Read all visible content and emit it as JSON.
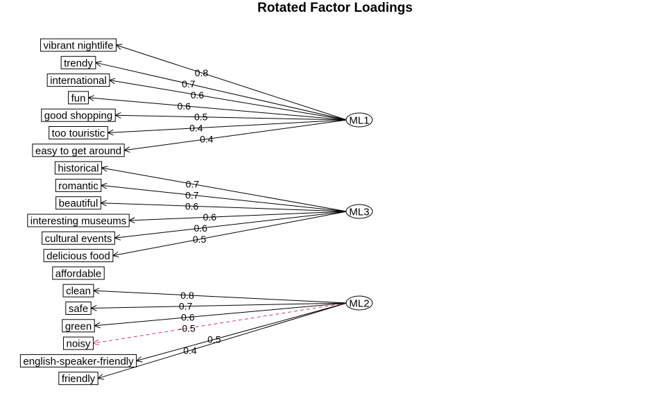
{
  "title": "Rotated Factor Loadings",
  "colors": {
    "positive_edge": "#000000",
    "negative_edge": "#d6336c",
    "node_fill": "#ffffff",
    "node_stroke": "#000000"
  },
  "factors": [
    {
      "id": "ML1",
      "label": "ML1"
    },
    {
      "id": "ML3",
      "label": "ML3"
    },
    {
      "id": "ML2",
      "label": "ML2"
    }
  ],
  "variables": [
    {
      "id": "vibrant-nightlife",
      "label": "vibrant nightlife"
    },
    {
      "id": "trendy",
      "label": "trendy"
    },
    {
      "id": "international",
      "label": "international"
    },
    {
      "id": "fun",
      "label": "fun"
    },
    {
      "id": "good-shopping",
      "label": "good shopping"
    },
    {
      "id": "too-touristic",
      "label": "too touristic"
    },
    {
      "id": "easy-to-get-around",
      "label": "easy to get around"
    },
    {
      "id": "historical",
      "label": "historical"
    },
    {
      "id": "romantic",
      "label": "romantic"
    },
    {
      "id": "beautiful",
      "label": "beautiful"
    },
    {
      "id": "interesting-museums",
      "label": "interesting museums"
    },
    {
      "id": "cultural-events",
      "label": "cultural events"
    },
    {
      "id": "delicious-food",
      "label": "delicious food"
    },
    {
      "id": "affordable",
      "label": "affordable"
    },
    {
      "id": "clean",
      "label": "clean"
    },
    {
      "id": "safe",
      "label": "safe"
    },
    {
      "id": "green",
      "label": "green"
    },
    {
      "id": "noisy",
      "label": "noisy"
    },
    {
      "id": "english-speaker-friendly",
      "label": "english-speaker-friendly"
    },
    {
      "id": "friendly",
      "label": "friendly"
    }
  ],
  "loadings": [
    {
      "factor": "ML1",
      "variable": "vibrant-nightlife",
      "value": 0.8,
      "label": "0.8"
    },
    {
      "factor": "ML1",
      "variable": "trendy",
      "value": 0.7,
      "label": "0.7"
    },
    {
      "factor": "ML1",
      "variable": "international",
      "value": 0.6,
      "label": "0.6"
    },
    {
      "factor": "ML1",
      "variable": "fun",
      "value": 0.6,
      "label": "0.6"
    },
    {
      "factor": "ML1",
      "variable": "good-shopping",
      "value": 0.5,
      "label": "0.5"
    },
    {
      "factor": "ML1",
      "variable": "too-touristic",
      "value": 0.4,
      "label": "0.4"
    },
    {
      "factor": "ML1",
      "variable": "easy-to-get-around",
      "value": 0.4,
      "label": "0.4"
    },
    {
      "factor": "ML3",
      "variable": "historical",
      "value": 0.7,
      "label": "0.7"
    },
    {
      "factor": "ML3",
      "variable": "romantic",
      "value": 0.7,
      "label": "0.7"
    },
    {
      "factor": "ML3",
      "variable": "beautiful",
      "value": 0.6,
      "label": "0.6"
    },
    {
      "factor": "ML3",
      "variable": "interesting-museums",
      "value": 0.6,
      "label": "0.6"
    },
    {
      "factor": "ML3",
      "variable": "cultural-events",
      "value": 0.6,
      "label": "0.6"
    },
    {
      "factor": "ML3",
      "variable": "delicious-food",
      "value": 0.5,
      "label": "0.5"
    },
    {
      "factor": "ML2",
      "variable": "clean",
      "value": 0.8,
      "label": "0.8"
    },
    {
      "factor": "ML2",
      "variable": "safe",
      "value": 0.7,
      "label": "0.7"
    },
    {
      "factor": "ML2",
      "variable": "green",
      "value": 0.6,
      "label": "0.6"
    },
    {
      "factor": "ML2",
      "variable": "noisy",
      "value": -0.5,
      "label": "-0.5"
    },
    {
      "factor": "ML2",
      "variable": "english-speaker-friendly",
      "value": 0.5,
      "label": "0.5"
    },
    {
      "factor": "ML2",
      "variable": "friendly",
      "value": 0.4,
      "label": "0.4"
    }
  ]
}
